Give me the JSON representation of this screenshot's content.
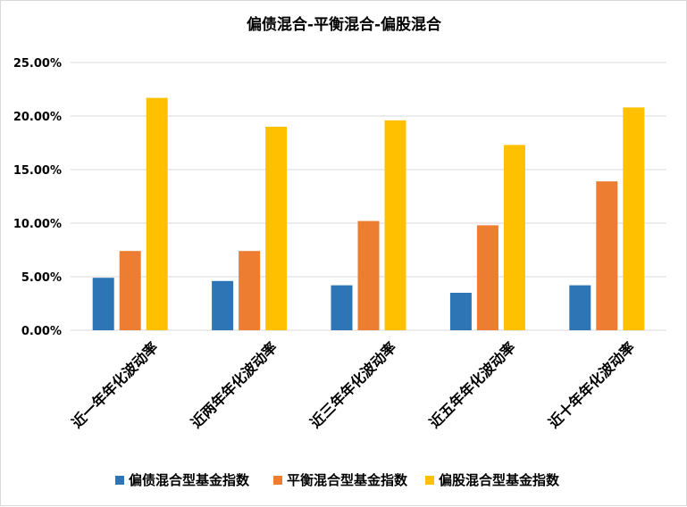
{
  "chart_data": {
    "type": "bar",
    "title": "偏债混合-平衡混合-偏股混合",
    "categories": [
      "近一年年化波动率",
      "近两年年化波动率",
      "近三年年化波动率",
      "近五年年化波动率",
      "近十年年化波动率"
    ],
    "series": [
      {
        "name": "偏债混合型基金指数",
        "color": "#2e75b6",
        "values": [
          4.9,
          4.6,
          4.2,
          3.5,
          4.2
        ]
      },
      {
        "name": "平衡混合型基金指数",
        "color": "#ed7d31",
        "values": [
          7.4,
          7.4,
          10.2,
          9.8,
          13.9
        ]
      },
      {
        "name": "偏股混合型基金指数",
        "color": "#ffc000",
        "values": [
          21.7,
          19.0,
          19.6,
          17.3,
          20.8
        ]
      }
    ],
    "y_ticks": [
      "0.00%",
      "5.00%",
      "10.00%",
      "15.00%",
      "20.00%",
      "25.00%"
    ],
    "ylim": [
      0,
      25
    ],
    "grid": true,
    "legend_position": "bottom"
  }
}
